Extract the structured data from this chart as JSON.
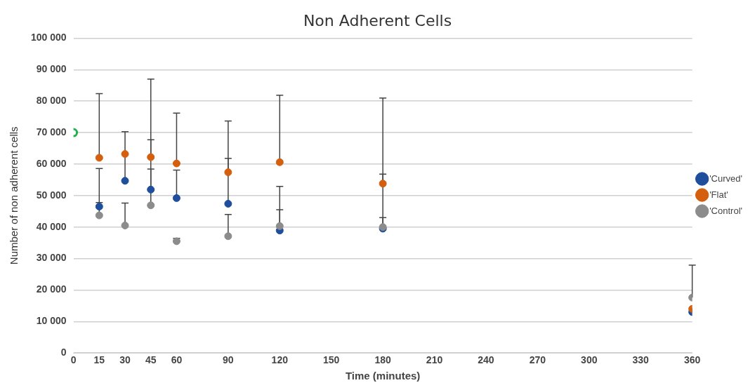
{
  "chart_data": {
    "type": "scatter",
    "title": "Non Adherent Cells",
    "xlabel": "Time (minutes)",
    "ylabel": "Number of non adherent cells",
    "xlim": [
      0,
      360
    ],
    "xticks": [
      0,
      15,
      30,
      45,
      60,
      90,
      120,
      150,
      180,
      210,
      240,
      270,
      300,
      330,
      360
    ],
    "ylim": [
      0,
      100000
    ],
    "yticks": [
      {
        "value": 0,
        "label": "0"
      },
      {
        "value": 10000,
        "label": "10 000"
      },
      {
        "value": 20000,
        "label": "20 000"
      },
      {
        "value": 30000,
        "label": "30 000"
      },
      {
        "value": 40000,
        "label": "40 000"
      },
      {
        "value": 50000,
        "label": "50 000"
      },
      {
        "value": 60000,
        "label": "60 000"
      },
      {
        "value": 70000,
        "label": "70 000"
      },
      {
        "value": 80000,
        "label": "80 000"
      },
      {
        "value": 90000,
        "label": "90 000"
      },
      {
        "value": 100000,
        "label": "100 000"
      }
    ],
    "grid": "y",
    "legend": "right",
    "marker": "circle",
    "series": [
      {
        "color": "#22b14c",
        "x": [
          0
        ],
        "values": [
          70000
        ]
      },
      {
        "name": "'Curved'",
        "color": "#1f4e9c",
        "x": [
          15,
          30,
          45,
          60,
          90,
          120,
          180,
          360
        ],
        "values": [
          46500,
          54700,
          51900,
          49200,
          47400,
          38900,
          39500,
          13000
        ],
        "errors": [
          [
            46500,
            58600
          ],
          [
            54700,
            70300
          ],
          [
            51900,
            67700
          ],
          [
            49200,
            58100
          ],
          [
            47400,
            61800
          ],
          [
            38900,
            45500
          ],
          [
            39500,
            56800
          ],
          null
        ]
      },
      {
        "name": "'Flat'",
        "color": "#d4600f",
        "x": [
          15,
          30,
          45,
          60,
          90,
          120,
          180,
          360
        ],
        "values": [
          62000,
          63200,
          62200,
          60200,
          57400,
          60600,
          53800,
          14000
        ],
        "errors": [
          [
            62000,
            82400
          ],
          null,
          [
            62200,
            87000
          ],
          [
            60200,
            76200
          ],
          [
            57400,
            73700
          ],
          [
            60600,
            81900
          ],
          [
            53800,
            81000
          ],
          null
        ]
      },
      {
        "name": "'Control'",
        "color": "#8c8c8c",
        "x": [
          15,
          30,
          45,
          60,
          90,
          120,
          180,
          360
        ],
        "values": [
          43700,
          40500,
          46900,
          35500,
          37100,
          40300,
          40000,
          17600
        ],
        "errors": [
          [
            43700,
            47800
          ],
          [
            40500,
            47600
          ],
          [
            46900,
            58400
          ],
          [
            35500,
            36400
          ],
          [
            37100,
            44000
          ],
          [
            40300,
            52900
          ],
          [
            40000,
            43000
          ],
          [
            17600,
            27900
          ]
        ]
      }
    ]
  }
}
